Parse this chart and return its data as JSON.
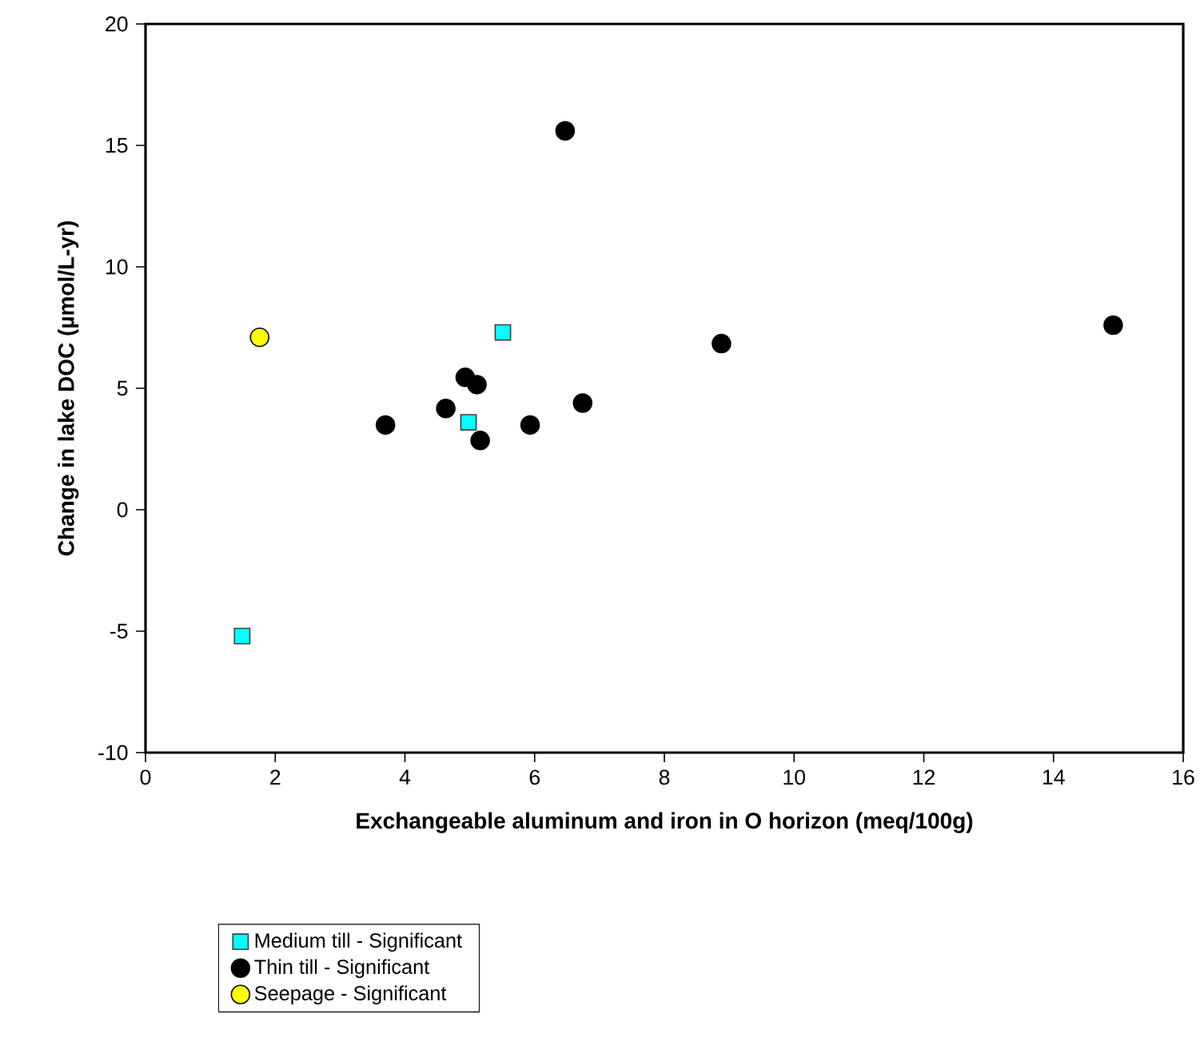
{
  "chart_data": {
    "type": "scatter",
    "xlabel": "Exchangeable aluminum and iron in O horizon (meq/100g)",
    "ylabel": "Change in lake DOC (µmol/L-yr)",
    "xlim": [
      0,
      16
    ],
    "ylim": [
      -10,
      20
    ],
    "xticks": [
      0,
      2,
      4,
      6,
      8,
      10,
      12,
      14,
      16
    ],
    "yticks": [
      -10,
      -5,
      0,
      5,
      10,
      15,
      20
    ],
    "grid": false,
    "legend": "bottom left",
    "series": [
      {
        "name": "Medium till - Significant",
        "color": "#00ffff",
        "marker": "square",
        "x": [
          1.49,
          5.51,
          4.98
        ],
        "values": [
          -5.2,
          7.3,
          3.6
        ]
      },
      {
        "name": "Thin till - Significant",
        "color": "#000000",
        "marker": "circle",
        "x": [
          6.47,
          4.93,
          5.11,
          4.63,
          3.7,
          5.16,
          5.93,
          6.74,
          8.88,
          14.92
        ],
        "values": [
          15.6,
          5.45,
          5.15,
          4.17,
          3.49,
          2.85,
          3.49,
          4.39,
          6.84,
          7.6
        ]
      },
      {
        "name": "Seepage - Significant",
        "color": "#ffff00",
        "marker": "circle",
        "x": [
          1.76
        ],
        "values": [
          7.1
        ]
      }
    ]
  }
}
